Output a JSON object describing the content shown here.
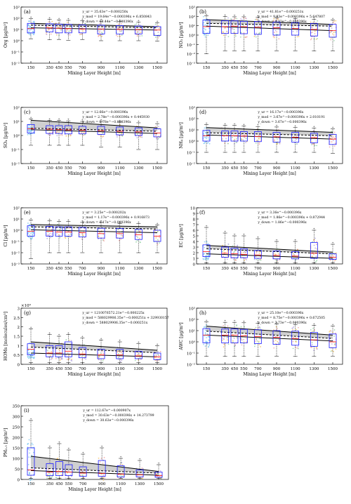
{
  "colors": {
    "box": "#1a1aff",
    "median": "#ff2020",
    "fit": "#000000",
    "band": "#c8c8c8",
    "scatter": [
      "#7fc8f0",
      "#f2a0a0",
      "#f5c060",
      "#b0a0e0",
      "#90d0a0"
    ],
    "outlier": "#e00000"
  },
  "chart_data": [
    {
      "type": "boxplot",
      "panel_label": "(a)",
      "xlabel": "Mixing Layer Height [m]",
      "ylabel": "Org [μg/m³]",
      "xcategories": [
        "150",
        "350",
        "450",
        "550",
        "700",
        "900",
        "1100",
        "1300",
        "1500"
      ],
      "yscale": "log",
      "ylim": [
        0.01,
        1000
      ],
      "yticks": [
        "10⁻²",
        "10⁻¹",
        "10⁰",
        "10¹",
        "10²",
        "10³"
      ],
      "equations": [
        "y_ur = 35.63e^−0.000250x",
        "y_mod = 19.64e^−0.000396x + 6.850843",
        "y_down = 13.44e^−0.000396x"
      ],
      "boxes": [
        {
          "q1": 5,
          "med": 12,
          "q3": 35,
          "lo": 1.5,
          "hi": 90
        },
        {
          "q1": 6,
          "med": 14,
          "q3": 32,
          "lo": 1.2,
          "hi": 80
        },
        {
          "q1": 5,
          "med": 13,
          "q3": 30,
          "lo": 1.3,
          "hi": 70
        },
        {
          "q1": 5,
          "med": 12,
          "q3": 28,
          "lo": 1.1,
          "hi": 65
        },
        {
          "q1": 5,
          "med": 11,
          "q3": 25,
          "lo": 1.2,
          "hi": 60
        },
        {
          "q1": 4,
          "med": 11,
          "q3": 24,
          "lo": 1.0,
          "hi": 55
        },
        {
          "q1": 4,
          "med": 10,
          "q3": 22,
          "lo": 1.0,
          "hi": 50
        },
        {
          "q1": 4,
          "med": 10,
          "q3": 20,
          "lo": 1.0,
          "hi": 45
        },
        {
          "q1": 3,
          "med": 9,
          "q3": 18,
          "lo": 0.9,
          "hi": 40
        }
      ],
      "fit": {
        "upper": [
          35,
          18
        ],
        "mid": [
          24,
          14
        ],
        "lower": [
          14,
          9
        ]
      }
    },
    {
      "type": "boxplot",
      "panel_label": "(b)",
      "xlabel": "Mixing Layer Height [m]",
      "ylabel": "NO₃ [μg/m³]",
      "xcategories": [
        "150",
        "350",
        "450",
        "550",
        "700",
        "900",
        "1100",
        "1300",
        "1500"
      ],
      "yscale": "log",
      "ylim": [
        0.001,
        1000
      ],
      "yticks": [
        "10⁻³",
        "10⁻²",
        "10⁻¹",
        "10⁰",
        "10¹",
        "10²",
        "10³"
      ],
      "equations": [
        "y_ur = 41.81e^−0.000251x",
        "y_mod = 9.93e^−0.000396x + 5.647807",
        "y_down = 8.93e^−0.000396x"
      ],
      "boxes": [
        {
          "q1": 1.5,
          "med": 8,
          "q3": 40,
          "lo": 0.01,
          "hi": 120
        },
        {
          "q1": 1.5,
          "med": 8,
          "q3": 35,
          "lo": 0.02,
          "hi": 100
        },
        {
          "q1": 1.5,
          "med": 9,
          "q3": 33,
          "lo": 0.02,
          "hi": 90
        },
        {
          "q1": 1.4,
          "med": 8,
          "q3": 30,
          "lo": 0.02,
          "hi": 90
        },
        {
          "q1": 1.2,
          "med": 7,
          "q3": 28,
          "lo": 0.02,
          "hi": 80
        },
        {
          "q1": 1.0,
          "med": 6,
          "q3": 25,
          "lo": 0.02,
          "hi": 70
        },
        {
          "q1": 1.0,
          "med": 5,
          "q3": 22,
          "lo": 0.02,
          "hi": 60
        },
        {
          "q1": 0.8,
          "med": 4,
          "q3": 18,
          "lo": 0.02,
          "hi": 50
        },
        {
          "q1": 0.6,
          "med": 3,
          "q3": 14,
          "lo": 0.02,
          "hi": 40
        }
      ],
      "fit": {
        "upper": [
          45,
          14
        ],
        "mid": [
          18,
          9
        ],
        "lower": [
          9,
          3
        ]
      }
    },
    {
      "type": "boxplot",
      "panel_label": "(c)",
      "xlabel": "Mixing Layer Height [m]",
      "ylabel": "SO₄ [μg/m³]",
      "xcategories": [
        "150",
        "350",
        "450",
        "550",
        "700",
        "900",
        "1100",
        "1300",
        "1500"
      ],
      "yscale": "log",
      "ylim": [
        0.01,
        100
      ],
      "yticks": [
        "10⁻²",
        "10⁻¹",
        "10⁰",
        "10¹",
        "10²"
      ],
      "equations": [
        "y_ur = 12.66e^−0.000396x",
        "y_mod = 2.78e^−0.000396x + 0.445930",
        "y_down = 2.78e^−0.000396x"
      ],
      "boxes": [
        {
          "q1": 1.5,
          "med": 3,
          "q3": 6,
          "lo": 0.2,
          "hi": 15
        },
        {
          "q1": 1.4,
          "med": 2.8,
          "q3": 5,
          "lo": 0.2,
          "hi": 12
        },
        {
          "q1": 1.4,
          "med": 2.6,
          "q3": 5,
          "lo": 0.2,
          "hi": 12
        },
        {
          "q1": 1.3,
          "med": 2.5,
          "q3": 5,
          "lo": 0.2,
          "hi": 11
        },
        {
          "q1": 1.3,
          "med": 2.4,
          "q3": 4.5,
          "lo": 0.2,
          "hi": 10
        },
        {
          "q1": 1.2,
          "med": 2.2,
          "q3": 4.5,
          "lo": 0.15,
          "hi": 10
        },
        {
          "q1": 1.1,
          "med": 2.0,
          "q3": 4,
          "lo": 0.15,
          "hi": 9
        },
        {
          "q1": 1.0,
          "med": 1.8,
          "q3": 3.5,
          "lo": 0.1,
          "hi": 8
        },
        {
          "q1": 0.8,
          "med": 1.5,
          "q3": 3,
          "lo": 0.1,
          "hi": 7
        }
      ],
      "fit": {
        "upper": [
          12,
          3.5
        ],
        "mid": [
          3.3,
          2
        ],
        "lower": [
          2.6,
          1.4
        ]
      }
    },
    {
      "type": "boxplot",
      "panel_label": "(d)",
      "xlabel": "Mixing Layer Height [m]",
      "ylabel": "NH₄ [μg/m³]",
      "xcategories": [
        "150",
        "350",
        "450",
        "550",
        "700",
        "900",
        "1100",
        "1300",
        "1500"
      ],
      "yscale": "log",
      "ylim": [
        0.01,
        1000
      ],
      "yticks": [
        "10⁻²",
        "10⁻¹",
        "10⁰",
        "10¹",
        "10²",
        "10³"
      ],
      "equations": [
        "y_ur = 16.17e^−0.000396x",
        "y_mod = 3.67e^−0.000396x + 2.010191",
        "y_down = 3.67e^−0.000396x"
      ],
      "boxes": [
        {
          "q1": 1.0,
          "med": 3,
          "q3": 9,
          "lo": 0.1,
          "hi": 30
        },
        {
          "q1": 1.0,
          "med": 3,
          "q3": 8,
          "lo": 0.1,
          "hi": 25
        },
        {
          "q1": 1.0,
          "med": 3,
          "q3": 8,
          "lo": 0.1,
          "hi": 25
        },
        {
          "q1": 1.0,
          "med": 2.8,
          "q3": 7,
          "lo": 0.1,
          "hi": 22
        },
        {
          "q1": 0.9,
          "med": 2.6,
          "q3": 7,
          "lo": 0.1,
          "hi": 20
        },
        {
          "q1": 0.8,
          "med": 2.4,
          "q3": 6,
          "lo": 0.1,
          "hi": 18
        },
        {
          "q1": 0.8,
          "med": 2.2,
          "q3": 6,
          "lo": 0.1,
          "hi": 16
        },
        {
          "q1": 0.7,
          "med": 2,
          "q3": 5,
          "lo": 0.1,
          "hi": 14
        },
        {
          "q1": 0.5,
          "med": 1.5,
          "q3": 4,
          "lo": 0.08,
          "hi": 12
        }
      ],
      "fit": {
        "upper": [
          16,
          6
        ],
        "mid": [
          5.5,
          3
        ],
        "lower": [
          3.5,
          1.5
        ]
      }
    },
    {
      "type": "boxplot",
      "panel_label": "(e)",
      "xlabel": "Mixing Layer Height [m]",
      "ylabel": "Cl [μg/m³]",
      "xcategories": [
        "150",
        "350",
        "450",
        "550",
        "700",
        "900",
        "1100",
        "1300",
        "1500"
      ],
      "yscale": "log",
      "ylim": [
        0.001,
        100
      ],
      "yticks": [
        "10⁻³",
        "10⁻²",
        "10⁻¹",
        "10⁰",
        "10¹",
        "10²"
      ],
      "equations": [
        "y_ur = 3.25e^−0.000202x",
        "y_mod = 1.17e^−0.000396x + 0.916873",
        "y_down = 1.17e^−0.000396x"
      ],
      "boxes": [
        {
          "q1": 0.3,
          "med": 0.8,
          "q3": 2.5,
          "lo": 0.003,
          "hi": 8
        },
        {
          "q1": 0.3,
          "med": 0.8,
          "q3": 2.2,
          "lo": 0.01,
          "hi": 7
        },
        {
          "q1": 0.3,
          "med": 0.7,
          "q3": 2,
          "lo": 0.01,
          "hi": 6
        },
        {
          "q1": 0.3,
          "med": 0.7,
          "q3": 2,
          "lo": 0.01,
          "hi": 6
        },
        {
          "q1": 0.25,
          "med": 0.6,
          "q3": 1.8,
          "lo": 0.01,
          "hi": 5
        },
        {
          "q1": 0.2,
          "med": 0.5,
          "q3": 1.5,
          "lo": 0.01,
          "hi": 5
        },
        {
          "q1": 0.2,
          "med": 0.5,
          "q3": 1.4,
          "lo": 0.01,
          "hi": 4
        },
        {
          "q1": 0.15,
          "med": 0.4,
          "q3": 1.2,
          "lo": 0.01,
          "hi": 4
        },
        {
          "q1": 0.1,
          "med": 0.3,
          "q3": 1,
          "lo": 0.01,
          "hi": 3
        }
      ],
      "fit": {
        "upper": [
          3.2,
          2
        ],
        "mid": [
          2,
          1.3
        ],
        "lower": [
          1.1,
          0.6
        ]
      }
    },
    {
      "type": "boxplot",
      "panel_label": "(f)",
      "xlabel": "Mixing Layer Height [m]",
      "ylabel": "EC [μg/m³]",
      "xcategories": [
        "150",
        "350",
        "450",
        "550",
        "700",
        "900",
        "1100",
        "1300",
        "1500"
      ],
      "yscale": "linear",
      "ylim": [
        0,
        10
      ],
      "yticks": [
        "0",
        "1",
        "2",
        "3",
        "4",
        "5",
        "6",
        "7",
        "8",
        "9",
        "10"
      ],
      "equations": [
        "y_ur = 3.36e^−0.000396x",
        "y_mod = 1.86e^−0.000396x + 0.872944",
        "y_down = 1.86e^−0.000396x"
      ],
      "boxes": [
        {
          "q1": 1.3,
          "med": 2.2,
          "q3": 3.4,
          "lo": 0.2,
          "hi": 6.5
        },
        {
          "q1": 1.2,
          "med": 1.9,
          "q3": 3.0,
          "lo": 0.2,
          "hi": 5.5
        },
        {
          "q1": 1.1,
          "med": 1.8,
          "q3": 2.8,
          "lo": 0.2,
          "hi": 5.0
        },
        {
          "q1": 1.1,
          "med": 1.7,
          "q3": 2.7,
          "lo": 0.2,
          "hi": 5.0
        },
        {
          "q1": 1.0,
          "med": 1.6,
          "q3": 2.4,
          "lo": 0.2,
          "hi": 4.5
        },
        {
          "q1": 0.9,
          "med": 1.5,
          "q3": 2.3,
          "lo": 0.2,
          "hi": 4.0
        },
        {
          "q1": 0.9,
          "med": 1.4,
          "q3": 2.2,
          "lo": 0.2,
          "hi": 4.0
        },
        {
          "q1": 1.0,
          "med": 1.9,
          "q3": 3.8,
          "lo": 0.2,
          "hi": 6.0
        },
        {
          "q1": 0.8,
          "med": 1.2,
          "q3": 1.8,
          "lo": 0.2,
          "hi": 3.5
        }
      ],
      "fit": {
        "upper": [
          3.3,
          2.1
        ],
        "mid": [
          2.7,
          1.8
        ],
        "lower": [
          1.8,
          1.0
        ]
      }
    },
    {
      "type": "boxplot",
      "panel_label": "(g)",
      "xlabel": "Mixing Layer Height [m]",
      "ylabel": "HOMs [molecules/cm³]",
      "ymultiplier": "×10⁹",
      "xcategories": [
        "150",
        "350",
        "450",
        "550",
        "700",
        "900",
        "1100",
        "1300",
        "1500"
      ],
      "yscale": "linear",
      "ylim": [
        0,
        3
      ],
      "yticks": [
        "0",
        "0.5",
        "1",
        "1.5",
        "2",
        "2.5",
        "3"
      ],
      "equations": [
        "y_ur = 1210076572.21e^−0.000225x",
        "y_mod = 588029906.35e^−0.000251x + 329930157",
        "y_down = 588029906.35e^−0.000251x"
      ],
      "boxes": [
        {
          "q1": 0.5,
          "med": 0.8,
          "q3": 1.1,
          "lo": 0.1,
          "hi": 1.9
        },
        {
          "q1": 0.4,
          "med": 0.6,
          "q3": 1.0,
          "lo": 0.1,
          "hi": 1.6
        },
        {
          "q1": 0.4,
          "med": 0.6,
          "q3": 1.0,
          "lo": 0.1,
          "hi": 1.5
        },
        {
          "q1": 0.4,
          "med": 0.7,
          "q3": 1.2,
          "lo": 0.1,
          "hi": 1.6
        },
        {
          "q1": 0.35,
          "med": 0.55,
          "q3": 0.9,
          "lo": 0.1,
          "hi": 1.4
        },
        {
          "q1": 0.3,
          "med": 0.5,
          "q3": 0.8,
          "lo": 0.1,
          "hi": 1.3
        },
        {
          "q1": 0.3,
          "med": 0.5,
          "q3": 0.8,
          "lo": 0.1,
          "hi": 1.2
        },
        {
          "q1": 0.3,
          "med": 0.45,
          "q3": 0.7,
          "lo": 0.1,
          "hi": 1.1
        },
        {
          "q1": 0.25,
          "med": 0.4,
          "q3": 0.6,
          "lo": 0.1,
          "hi": 1.0
        }
      ],
      "fit": {
        "upper": [
          1.2,
          0.75
        ],
        "mid": [
          0.92,
          0.62
        ],
        "lower": [
          0.6,
          0.4
        ]
      }
    },
    {
      "type": "boxplot",
      "panel_label": "(h)",
      "xlabel": "Mixing Layer Height [m]",
      "ylabel": "AWC [μg/m³]",
      "xcategories": [
        "150",
        "350",
        "450",
        "550",
        "700",
        "900",
        "1100",
        "1300",
        "1500"
      ],
      "yscale": "log",
      "ylim": [
        0.01,
        1000
      ],
      "yticks": [
        "10⁻²",
        "10⁻¹",
        "10⁰",
        "10¹",
        "10²",
        "10³"
      ],
      "equations": [
        "y_ur = 25.10e^−0.000396x",
        "y_mod = 8.75e^−0.000396x + 0.672505",
        "y_down = 3.73e^−0.000396x"
      ],
      "boxes": [
        {
          "q1": 0.8,
          "med": 4,
          "q3": 15,
          "lo": 0.05,
          "hi": 60
        },
        {
          "q1": 0.8,
          "med": 4,
          "q3": 14,
          "lo": 0.05,
          "hi": 55
        },
        {
          "q1": 0.8,
          "med": 4,
          "q3": 14,
          "lo": 0.05,
          "hi": 55
        },
        {
          "q1": 0.8,
          "med": 3.5,
          "q3": 13,
          "lo": 0.05,
          "hi": 50
        },
        {
          "q1": 0.7,
          "med": 3,
          "q3": 12,
          "lo": 0.05,
          "hi": 45
        },
        {
          "q1": 0.6,
          "med": 2.5,
          "q3": 10,
          "lo": 0.05,
          "hi": 40
        },
        {
          "q1": 0.5,
          "med": 2,
          "q3": 9,
          "lo": 0.05,
          "hi": 35
        },
        {
          "q1": 0.4,
          "med": 1.5,
          "q3": 7,
          "lo": 0.05,
          "hi": 30
        },
        {
          "q1": 0.3,
          "med": 1,
          "q3": 5,
          "lo": 0.05,
          "hi": 25
        }
      ],
      "fit": {
        "upper": [
          25,
          4
        ],
        "mid": [
          9,
          2
        ],
        "lower": [
          4,
          1.2
        ]
      }
    },
    {
      "type": "boxplot",
      "panel_label": "(i)",
      "xlabel": "Mixing Layer Height [m]",
      "ylabel": "PM₂.₅ [μg/m³]",
      "xcategories": [
        "150",
        "350",
        "450",
        "550",
        "700",
        "900",
        "1100",
        "1300",
        "1500"
      ],
      "yscale": "linear",
      "ylim": [
        0,
        350
      ],
      "yticks": [
        "0",
        "50",
        "100",
        "150",
        "200",
        "250",
        "300",
        "350"
      ],
      "equations": [
        "y_ur = 112.67e^−0.000907x",
        "y_mod = 30.63e^−0.000396x + 14.273799",
        "y_down = 30.63e^−0.000396x"
      ],
      "boxes": [
        {
          "q1": 20,
          "med": 45,
          "q3": 150,
          "lo": 5,
          "hi": 280
        },
        {
          "q1": 18,
          "med": 35,
          "q3": 75,
          "lo": 5,
          "hi": 150
        },
        {
          "q1": 18,
          "med": 38,
          "q3": 85,
          "lo": 5,
          "hi": 170
        },
        {
          "q1": 18,
          "med": 35,
          "q3": 70,
          "lo": 5,
          "hi": 140
        },
        {
          "q1": 15,
          "med": 30,
          "q3": 60,
          "lo": 5,
          "hi": 120
        },
        {
          "q1": 15,
          "med": 28,
          "q3": 90,
          "lo": 5,
          "hi": 150
        },
        {
          "q1": 12,
          "med": 25,
          "q3": 65,
          "lo": 5,
          "hi": 100
        },
        {
          "q1": 12,
          "med": 22,
          "q3": 45,
          "lo": 5,
          "hi": 90
        },
        {
          "q1": 10,
          "med": 18,
          "q3": 35,
          "lo": 5,
          "hi": 70
        }
      ],
      "fit": {
        "upper": [
          110,
          38
        ],
        "mid": [
          55,
          30
        ],
        "lower": [
          42,
          20
        ]
      }
    }
  ]
}
